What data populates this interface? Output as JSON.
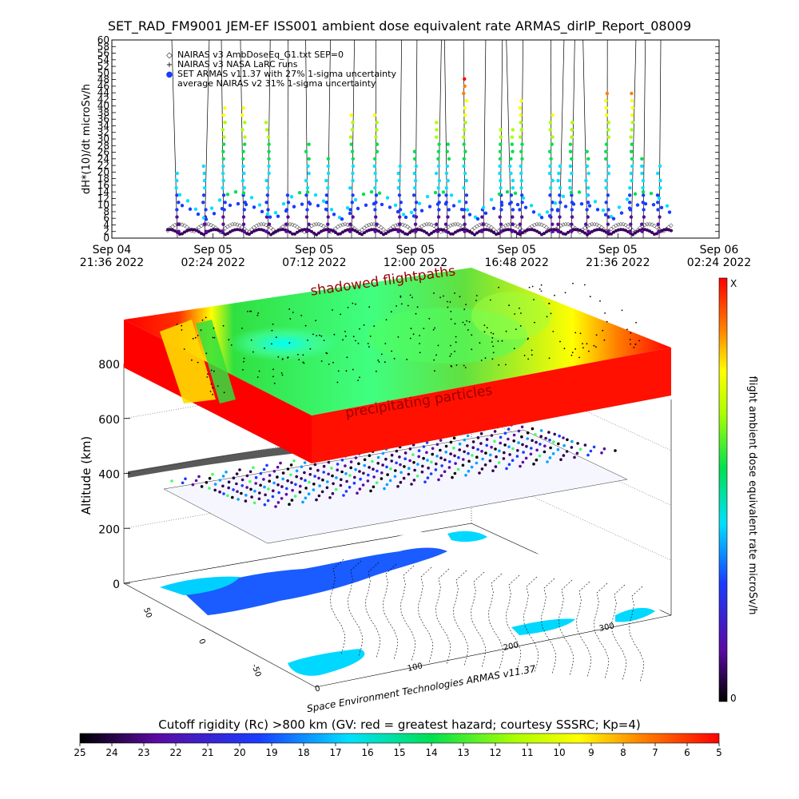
{
  "title": "SET_RAD_FM9001   JEM-EF ISS001 ambient dose equivalent rate ARMAS_dirIP_Report_08009",
  "chart_data": [
    {
      "type": "scatter",
      "ylabel": "dH*(10)/dt microSv/h",
      "ylim": [
        0,
        60
      ],
      "yticks": [
        "0",
        "2",
        "4",
        "6",
        "8",
        "10",
        "12",
        "14",
        "16",
        "18",
        "20",
        "22",
        "24",
        "26",
        "28",
        "30",
        "32",
        "34",
        "36",
        "38",
        "40",
        "42",
        "44",
        "46",
        "48",
        "50",
        "52",
        "54",
        "56",
        "58",
        "60"
      ],
      "xticks": [
        {
          "day": "Sep 04",
          "time": "21:36  2022"
        },
        {
          "day": "Sep 05",
          "time": "02:24  2022"
        },
        {
          "day": "Sep 05",
          "time": "07:12  2022"
        },
        {
          "day": "Sep 05",
          "time": "12:00  2022"
        },
        {
          "day": "Sep 05",
          "time": "16:48  2022"
        },
        {
          "day": "Sep 05",
          "time": "21:36  2022"
        },
        {
          "day": "Sep 06",
          "time": "02:24  2022"
        }
      ],
      "legend": [
        {
          "symbol": "◇",
          "label": "NAIRAS v3 AmbDoseEq_G1.txt SEP=0",
          "color": "#000000"
        },
        {
          "symbol": "+",
          "label": "NAIRAS v3 NASA LaRC runs",
          "color": "#000000"
        },
        {
          "symbol": "●",
          "label": "SET ARMAS v11.37 with 27% 1-sigma uncertainty",
          "color": "#1a3cff"
        },
        {
          "symbol": "",
          "label": "average NAIRAS v2 31% 1-sigma uncertainty",
          "color": "#000000"
        }
      ],
      "legend_position": "top-left",
      "series_summary": {
        "baseline_range_microSv_h": [
          0,
          6
        ],
        "typical_peaks_microSv_h": [
          10,
          20
        ],
        "max_peaks_microSv_h": 60,
        "spike_times": [
          "Sep 05 00:00",
          "Sep 05 01:00",
          "Sep 05 04:00",
          "Sep 05 06:00",
          "Sep 05 08:00",
          "Sep 05 10:00",
          "Sep 05 12:00",
          "Sep 05 13:30",
          "Sep 05 15:00",
          "Sep 05 16:30",
          "Sep 05 18:00",
          "Sep 05 19:30",
          "Sep 05 21:00"
        ]
      }
    },
    {
      "type": "heatmap",
      "ylabel": "Altitude (km)",
      "zticks": [
        "0",
        "200",
        "400",
        "600",
        "800"
      ],
      "lat_ticks": [
        "50",
        "0",
        "-50"
      ],
      "lon_ticks": [
        "0",
        "100",
        "200",
        "300"
      ],
      "annotations": [
        "shadowed flightpaths",
        "precipitating particles"
      ],
      "colorbar_right": {
        "label": "flight ambient dose equivalent rate microSv/h",
        "top": "X",
        "bottom": "0"
      },
      "colorbar_bottom": {
        "label": "Cutoff rigidity (Rc) >800 km (GV: red = greatest hazard; courtesy SSSRC; Kp=4)",
        "ticks": [
          "25",
          "24",
          "23",
          "22",
          "21",
          "20",
          "19",
          "18",
          "17",
          "16",
          "15",
          "14",
          "13",
          "12",
          "11",
          "10",
          "9",
          "8",
          "7",
          "6",
          "5"
        ]
      },
      "credit": "Space Environment Technologies ARMAS v11.37"
    }
  ]
}
